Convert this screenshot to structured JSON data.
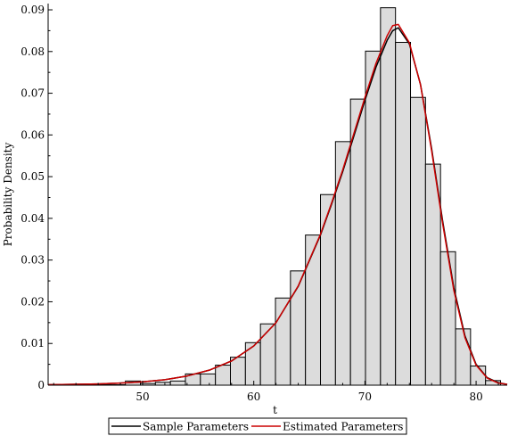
{
  "chart_data": {
    "type": "bar",
    "xlabel": "t",
    "ylabel": "Probability Density",
    "xlim": [
      41.5,
      82.8
    ],
    "ylim": [
      0,
      0.0915
    ],
    "x_ticks": [
      50,
      60,
      70,
      80
    ],
    "y_ticks": [
      0,
      0.01,
      0.02,
      0.03,
      0.04,
      0.05,
      0.06,
      0.07,
      0.08,
      0.09
    ],
    "y_tick_labels": [
      "0",
      "0.01",
      "0.02",
      "0.03",
      "0.04",
      "0.05",
      "0.06",
      "0.07",
      "0.08",
      "0.09"
    ],
    "histogram": {
      "bin_width": 1.35,
      "bins": [
        {
          "x0": 44.4,
          "density": 0.0002
        },
        {
          "x0": 45.75,
          "density": 0.0001
        },
        {
          "x0": 47.1,
          "density": 0.0001
        },
        {
          "x0": 48.45,
          "density": 0.001
        },
        {
          "x0": 49.8,
          "density": 0.0004
        },
        {
          "x0": 51.15,
          "density": 0.0007
        },
        {
          "x0": 52.5,
          "density": 0.001
        },
        {
          "x0": 53.85,
          "density": 0.0027
        },
        {
          "x0": 55.2,
          "density": 0.0027
        },
        {
          "x0": 56.55,
          "density": 0.0048
        },
        {
          "x0": 57.9,
          "density": 0.0067
        },
        {
          "x0": 59.25,
          "density": 0.0102
        },
        {
          "x0": 60.6,
          "density": 0.0147
        },
        {
          "x0": 61.95,
          "density": 0.0209
        },
        {
          "x0": 63.3,
          "density": 0.0274
        },
        {
          "x0": 64.65,
          "density": 0.036
        },
        {
          "x0": 66.0,
          "density": 0.0457
        },
        {
          "x0": 67.35,
          "density": 0.0584
        },
        {
          "x0": 68.7,
          "density": 0.0686
        },
        {
          "x0": 70.05,
          "density": 0.0801
        },
        {
          "x0": 71.4,
          "density": 0.0905
        },
        {
          "x0": 72.75,
          "density": 0.0822
        },
        {
          "x0": 74.1,
          "density": 0.069
        },
        {
          "x0": 75.45,
          "density": 0.053
        },
        {
          "x0": 76.8,
          "density": 0.032
        },
        {
          "x0": 78.15,
          "density": 0.0135
        },
        {
          "x0": 79.5,
          "density": 0.0046
        },
        {
          "x0": 80.85,
          "density": 0.0011
        }
      ]
    },
    "series": [
      {
        "name": "Sample Parameters",
        "color": "#000000",
        "x": [
          41.5,
          44,
          46,
          48,
          50,
          52,
          54,
          56,
          58,
          60,
          62,
          64,
          66,
          67,
          68,
          69,
          70,
          71,
          72,
          72.5,
          73,
          74,
          75,
          76,
          77,
          78,
          79,
          80,
          81,
          82,
          82.8
        ],
        "y": [
          0.0001,
          0.0002,
          0.0003,
          0.0005,
          0.0008,
          0.0013,
          0.0022,
          0.0036,
          0.0058,
          0.0094,
          0.015,
          0.0237,
          0.036,
          0.0434,
          0.0512,
          0.0597,
          0.0683,
          0.0763,
          0.0827,
          0.085,
          0.0857,
          0.0818,
          0.0721,
          0.0567,
          0.0392,
          0.0233,
          0.0118,
          0.005,
          0.0018,
          0.0006,
          0.0002
        ]
      },
      {
        "name": "Estimated Parameters",
        "color": "#cc0000",
        "x": [
          41.5,
          44,
          46,
          48,
          50,
          52,
          54,
          56,
          58,
          60,
          62,
          64,
          66,
          67,
          68,
          69,
          70,
          71,
          72,
          72.5,
          73,
          74,
          75,
          76,
          77,
          78,
          79,
          80,
          81,
          82,
          82.8
        ],
        "y": [
          0.0001,
          0.0002,
          0.0003,
          0.0005,
          0.0008,
          0.0013,
          0.0022,
          0.0036,
          0.0058,
          0.0094,
          0.015,
          0.0238,
          0.0362,
          0.0437,
          0.0516,
          0.0603,
          0.069,
          0.0772,
          0.0838,
          0.0862,
          0.0865,
          0.0821,
          0.072,
          0.0562,
          0.0386,
          0.0227,
          0.0114,
          0.0048,
          0.0017,
          0.0005,
          0.0002
        ]
      }
    ],
    "grid": false,
    "legend_position": "bottom"
  }
}
